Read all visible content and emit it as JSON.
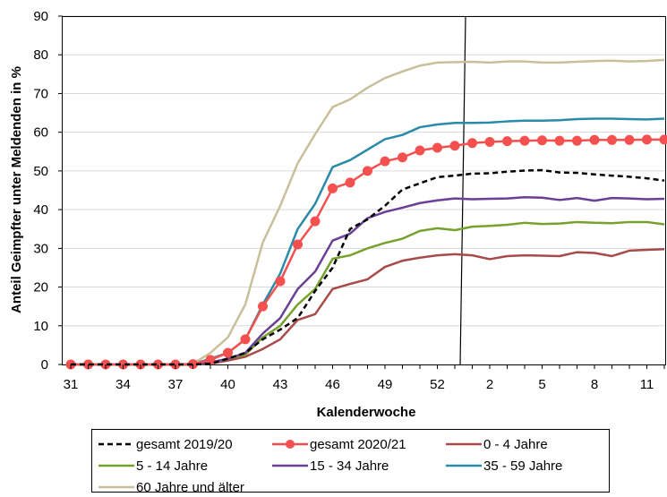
{
  "chart_data": {
    "type": "line",
    "xlabel": "Kalenderwoche",
    "ylabel": "Anteil Geimpfter unter Meldenden in %",
    "ylim": [
      0,
      90
    ],
    "yticks": [
      "0",
      "10",
      "20",
      "30",
      "40",
      "50",
      "60",
      "70",
      "80",
      "90"
    ],
    "x": [
      "31",
      "32",
      "33",
      "34",
      "35",
      "36",
      "37",
      "38",
      "39",
      "40",
      "41",
      "42",
      "43",
      "44",
      "45",
      "46",
      "47",
      "48",
      "49",
      "50",
      "51",
      "52",
      "53",
      "1",
      "2",
      "3",
      "4",
      "5",
      "6",
      "7",
      "8",
      "9",
      "10",
      "11",
      "12"
    ],
    "xtick_labels": [
      "31",
      "34",
      "37",
      "40",
      "43",
      "46",
      "49",
      "52",
      "2",
      "5",
      "8",
      "11"
    ],
    "year_break_after": "53",
    "legend_position": "bottom",
    "series": [
      {
        "name": "gesamt 2019/20",
        "color": "#000000",
        "style": "dashed",
        "markers": false,
        "values": [
          null,
          null,
          null,
          null,
          null,
          null,
          null,
          null,
          null,
          null,
          null,
          null,
          null,
          null,
          null,
          null,
          null,
          null,
          null,
          null,
          null,
          null,
          null,
          null,
          null,
          null,
          null,
          null,
          null,
          null,
          null,
          null,
          null,
          null,
          null
        ]
      },
      {
        "name": "gesamt 2020/21",
        "color": "#f4504f",
        "style": "solid",
        "markers": true,
        "values": [
          0,
          0,
          0,
          0,
          0,
          0,
          0,
          0.1,
          1.2,
          3,
          6.5,
          15,
          21.5,
          31,
          37,
          45.5,
          47,
          50,
          52.5,
          53.5,
          55.3,
          56,
          56.5,
          57.2,
          57.5,
          57.7,
          57.8,
          57.9,
          57.8,
          57.8,
          58,
          58,
          58,
          58.1,
          58.1
        ]
      },
      {
        "name": "0 - 4 Jahre",
        "color": "#a94a4a",
        "style": "solid",
        "markers": false,
        "values": [
          0,
          0,
          0,
          0,
          0,
          0,
          0,
          0,
          0.2,
          1,
          2,
          4,
          6.5,
          11.5,
          13,
          19.5,
          20.8,
          22,
          25.2,
          26.8,
          27.6,
          28.2,
          28.5,
          28.2,
          27.2,
          28,
          28.2,
          28.1,
          28,
          29,
          28.8,
          28,
          29.4,
          29.6,
          29.8
        ]
      },
      {
        "name": "5 - 14 Jahre",
        "color": "#77a12d",
        "style": "solid",
        "markers": false,
        "values": [
          0,
          0,
          0,
          0,
          0,
          0,
          0,
          0,
          0.3,
          1.5,
          2.5,
          7,
          10,
          15.5,
          19.5,
          27.3,
          28.2,
          30,
          31.4,
          32.5,
          34.5,
          35.2,
          34.7,
          35.6,
          35.8,
          36.1,
          36.6,
          36.3,
          36.4,
          36.8,
          36.6,
          36.5,
          36.8,
          36.8,
          36.2
        ]
      },
      {
        "name": "15 - 34 Jahre",
        "color": "#6a3f95",
        "style": "solid",
        "markers": false,
        "values": [
          0,
          0,
          0,
          0,
          0,
          0,
          0,
          0,
          0.5,
          1.5,
          3,
          8,
          12,
          19.5,
          24,
          32,
          33.8,
          37.8,
          39.4,
          40.5,
          41.7,
          42.4,
          42.9,
          42.7,
          42.8,
          42.9,
          43.2,
          43.1,
          42.5,
          43,
          42.3,
          43,
          42.9,
          42.7,
          42.8
        ]
      },
      {
        "name": "35 - 59 Jahre",
        "color": "#2b8aa8",
        "style": "solid",
        "markers": false,
        "values": [
          0,
          0,
          0,
          0,
          0,
          0,
          0,
          0.1,
          1.5,
          3,
          6.5,
          15.5,
          23.5,
          35,
          41.5,
          51,
          52.8,
          55.5,
          58.2,
          59.3,
          61.3,
          62,
          62.4,
          62.4,
          62.5,
          62.8,
          63,
          63,
          63.1,
          63.4,
          63.5,
          63.5,
          63.4,
          63.3,
          63.5
        ]
      },
      {
        "name": "60 Jahre und älter",
        "color": "#c9c09b",
        "style": "solid",
        "markers": false,
        "values": [
          0,
          0,
          0,
          0,
          0,
          0,
          0,
          0.2,
          3,
          7,
          15.5,
          31.5,
          41,
          52,
          59.5,
          66.5,
          68.5,
          71.5,
          74,
          75.7,
          77.2,
          78,
          78.1,
          78.2,
          78,
          78.3,
          78.3,
          78,
          78,
          78.2,
          78.4,
          78.5,
          78.3,
          78.4,
          78.7
        ]
      }
    ]
  }
}
